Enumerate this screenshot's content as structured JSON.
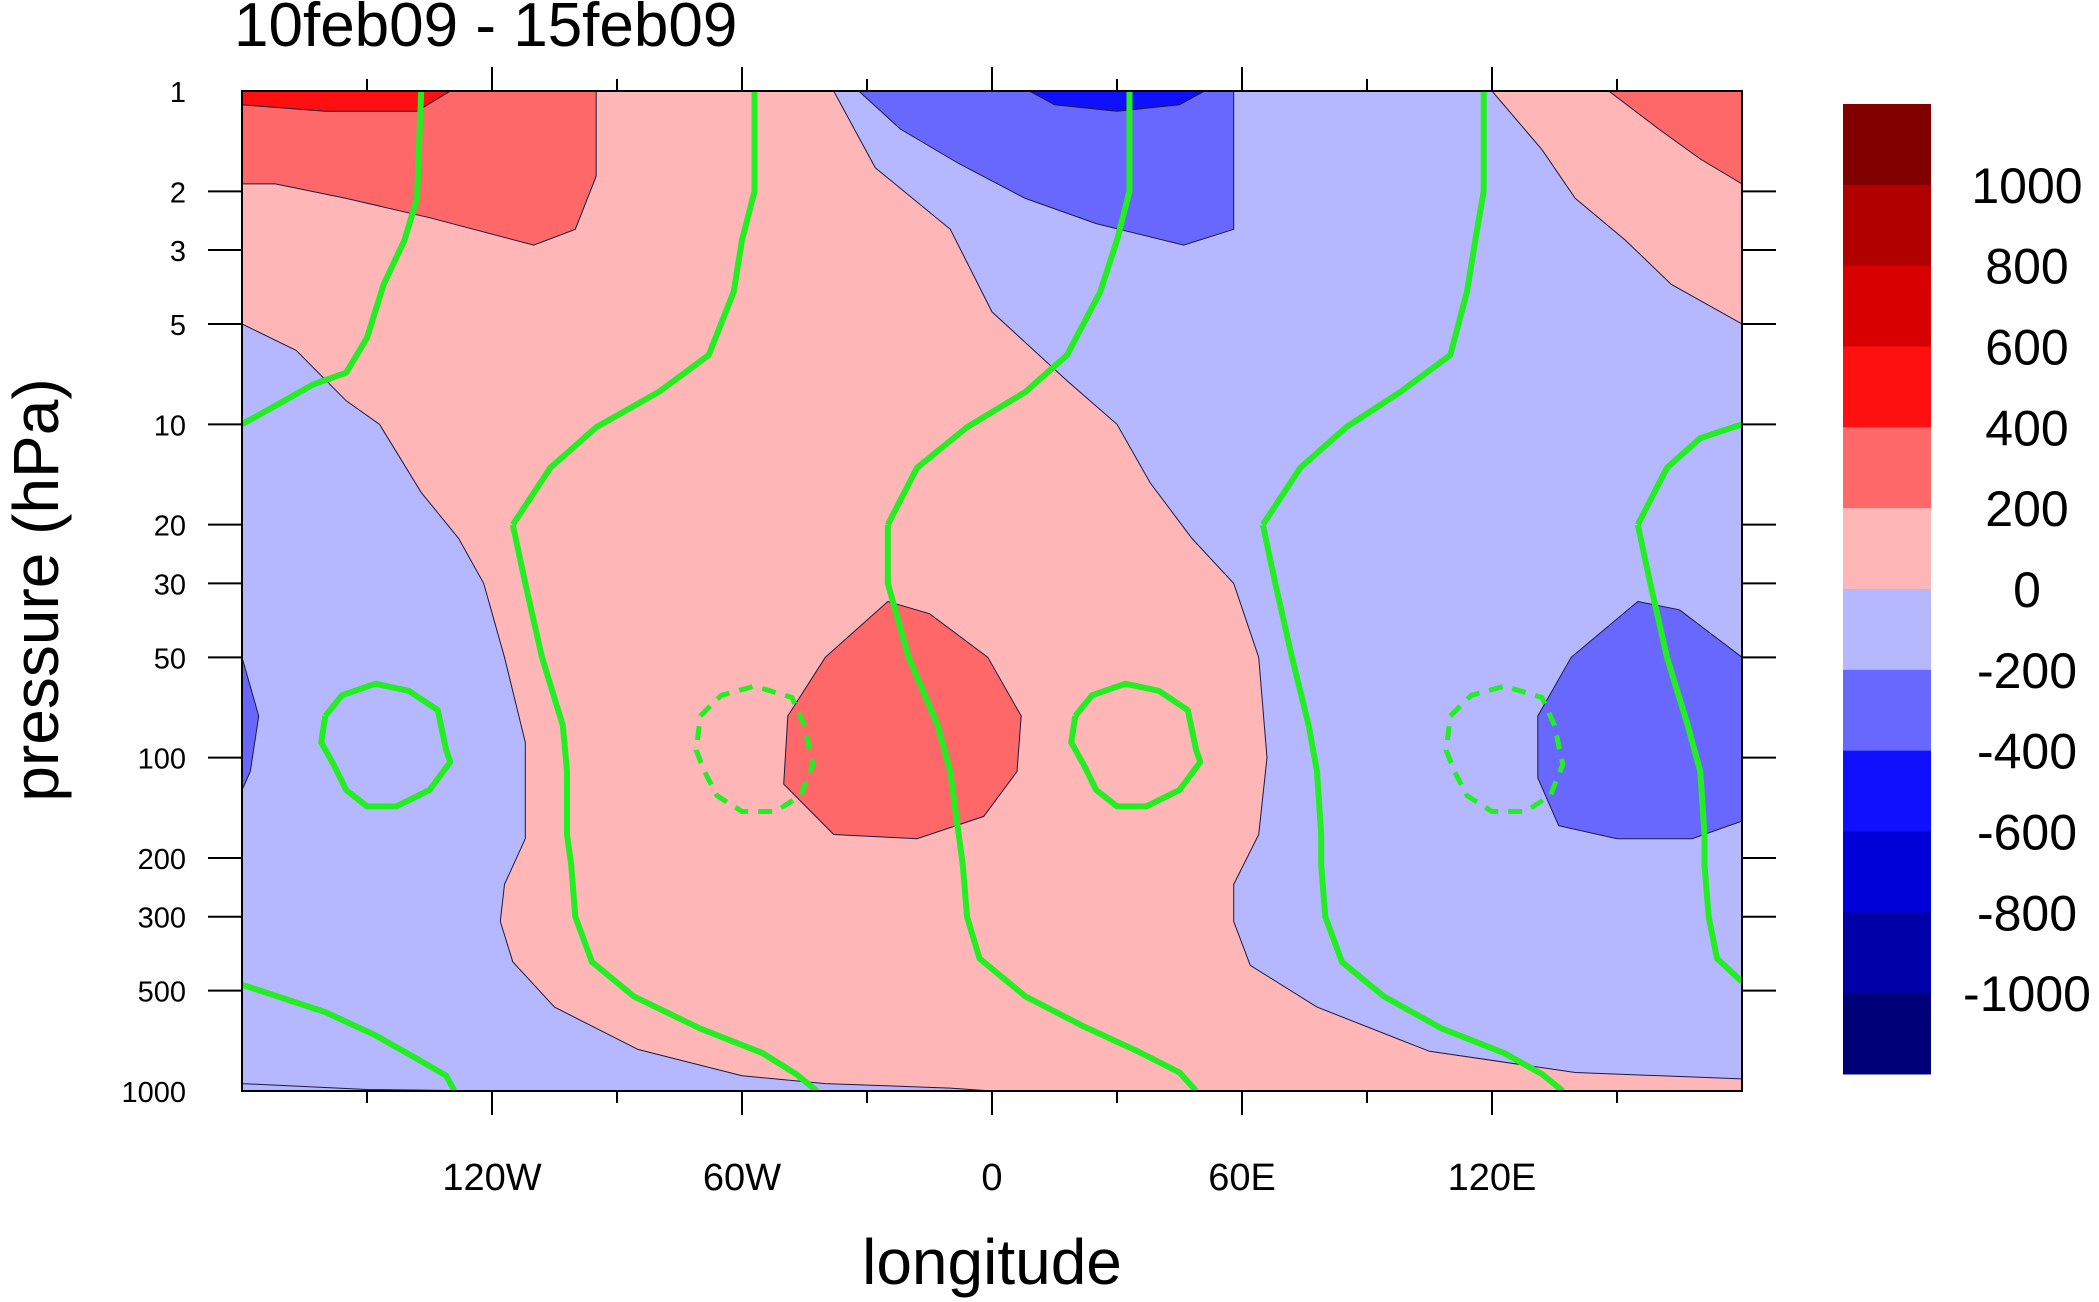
{
  "chart_data": {
    "type": "heatmap",
    "title": "10feb09 - 15feb09",
    "xlabel": "longitude",
    "ylabel": "pressure (hPa)",
    "x": {
      "range": [
        -180,
        180
      ],
      "tick_values": [
        -120,
        -60,
        0,
        60,
        120
      ],
      "tick_labels": [
        "120W",
        "60W",
        "0",
        "60E",
        "120E"
      ],
      "minor_every": 30
    },
    "y": {
      "scale": "log",
      "reversed": true,
      "range": [
        1000,
        1
      ],
      "tick_values": [
        1,
        2,
        3,
        5,
        10,
        20,
        30,
        50,
        100,
        200,
        300,
        500,
        1000
      ],
      "tick_labels": [
        "1",
        "2",
        "3",
        "5",
        "10",
        "20",
        "30",
        "50",
        "100",
        "200",
        "300",
        "500",
        "1000"
      ]
    },
    "colorbar": {
      "levels": [
        1000,
        800,
        600,
        400,
        200,
        0,
        -200,
        -400,
        -600,
        -800,
        -1000
      ],
      "labels": [
        "1000",
        "800",
        "600",
        "400",
        "200",
        "0",
        "-200",
        "-400",
        "-600",
        "-800",
        "-1000"
      ],
      "colors": [
        "#800000",
        "#b00000",
        "#d80000",
        "#ff1010",
        "#ff6868",
        "#ffb6b6",
        "#b6b8ff",
        "#6868ff",
        "#1010ff",
        "#0000d8",
        "#0000a8",
        "#000078"
      ]
    },
    "fill_regions": [
      {
        "value_band": "0 to 200",
        "color": "#ffb6b6",
        "points": [
          [
            -180,
            1
          ],
          [
            180,
            1
          ],
          [
            180,
            1000
          ],
          [
            -180,
            1000
          ]
        ]
      },
      {
        "value_band": "-200 to 0",
        "color": "#b6b8ff",
        "points": [
          [
            -180,
            5
          ],
          [
            -167,
            6
          ],
          [
            -155,
            8.5
          ],
          [
            -147,
            10
          ],
          [
            -137,
            16
          ],
          [
            -128,
            22
          ],
          [
            -122,
            30
          ],
          [
            -117,
            50
          ],
          [
            -112,
            90
          ],
          [
            -112,
            175
          ],
          [
            -117,
            240
          ],
          [
            -118,
            310
          ],
          [
            -115,
            410
          ],
          [
            -105,
            560
          ],
          [
            -85,
            750
          ],
          [
            -60,
            900
          ],
          [
            -40,
            950
          ],
          [
            -10,
            980
          ],
          [
            0,
            1000
          ],
          [
            -180,
            1000
          ],
          [
            -180,
            950
          ],
          [
            -150,
            990
          ],
          [
            -120,
            1000
          ],
          [
            -180,
            1000
          ]
        ]
      },
      {
        "value_band": "-200 to 0",
        "color": "#b6b8ff",
        "points": [
          [
            -38,
            1
          ],
          [
            -28,
            1.7
          ],
          [
            -10,
            2.6
          ],
          [
            0,
            4.6
          ],
          [
            18,
            7.4
          ],
          [
            30,
            10
          ],
          [
            38,
            15
          ],
          [
            48,
            22
          ],
          [
            58,
            30
          ],
          [
            64,
            50
          ],
          [
            66,
            100
          ],
          [
            64,
            170
          ],
          [
            58,
            240
          ],
          [
            58,
            310
          ],
          [
            62,
            420
          ],
          [
            78,
            560
          ],
          [
            105,
            760
          ],
          [
            140,
            880
          ],
          [
            180,
            920
          ],
          [
            180,
            5
          ],
          [
            163,
            3.8
          ],
          [
            152,
            2.8
          ],
          [
            140,
            2.1
          ],
          [
            132,
            1.5
          ],
          [
            120,
            1
          ]
        ]
      },
      {
        "value_band": "200 to 400",
        "color": "#ff6868",
        "points": [
          [
            -180,
            1
          ],
          [
            -95,
            1
          ],
          [
            -95,
            1.8
          ],
          [
            -100,
            2.6
          ],
          [
            -110,
            2.9
          ],
          [
            -135,
            2.4
          ],
          [
            -155,
            2.1
          ],
          [
            -172,
            1.9
          ],
          [
            -180,
            1.9
          ]
        ]
      },
      {
        "value_band": "200 to 400",
        "color": "#ff6868",
        "points": [
          [
            148,
            1
          ],
          [
            180,
            1
          ],
          [
            180,
            1.9
          ],
          [
            170,
            1.6
          ],
          [
            160,
            1.3
          ]
        ]
      },
      {
        "value_band": "200 to 400",
        "color": "#ff6868",
        "points": [
          [
            -25,
            34
          ],
          [
            -15,
            37
          ],
          [
            -1,
            50
          ],
          [
            7,
            75
          ],
          [
            6,
            110
          ],
          [
            -2,
            150
          ],
          [
            -18,
            175
          ],
          [
            -38,
            170
          ],
          [
            -50,
            120
          ],
          [
            -49,
            75
          ],
          [
            -40,
            50
          ]
        ]
      },
      {
        "value_band": "400 to 600",
        "color": "#ff1010",
        "points": [
          [
            -180,
            1
          ],
          [
            -130,
            1
          ],
          [
            -138,
            1.15
          ],
          [
            -160,
            1.15
          ],
          [
            -180,
            1.1
          ]
        ]
      },
      {
        "value_band": "-400 to -200",
        "color": "#6868ff",
        "points": [
          [
            -32,
            1
          ],
          [
            58,
            1
          ],
          [
            58,
            2.6
          ],
          [
            46,
            2.9
          ],
          [
            25,
            2.5
          ],
          [
            8,
            2.1
          ],
          [
            -8,
            1.65
          ],
          [
            -22,
            1.3
          ]
        ]
      },
      {
        "value_band": "-400 to -200",
        "color": "#6868ff",
        "points": [
          [
            -180,
            50
          ],
          [
            -176,
            75
          ],
          [
            -178,
            110
          ],
          [
            -180,
            125
          ]
        ]
      },
      {
        "value_band": "-400 to -200",
        "color": "#6868ff",
        "points": [
          [
            155,
            34
          ],
          [
            165,
            36
          ],
          [
            180,
            50
          ],
          [
            180,
            155
          ],
          [
            168,
            175
          ],
          [
            150,
            175
          ],
          [
            136,
            160
          ],
          [
            131,
            115
          ],
          [
            131,
            75
          ],
          [
            139,
            50
          ]
        ]
      },
      {
        "value_band": "-600 to -400",
        "color": "#1010ff",
        "points": [
          [
            9,
            1
          ],
          [
            51,
            1
          ],
          [
            45,
            1.1
          ],
          [
            30,
            1.15
          ],
          [
            15,
            1.1
          ]
        ]
      }
    ],
    "contours_solid": [
      [
        [
          -180,
          10
        ],
        [
          -172,
          8.8
        ],
        [
          -163,
          7.6
        ],
        [
          -155,
          7
        ],
        [
          -150,
          5.5
        ],
        [
          -146,
          3.8
        ],
        [
          -141,
          2.8
        ],
        [
          -138,
          2.1
        ],
        [
          -137,
          1
        ]
      ],
      [
        [
          -115,
          20
        ],
        [
          -112,
          30
        ],
        [
          -108,
          50
        ],
        [
          -103,
          80
        ],
        [
          -102,
          110
        ],
        [
          -102,
          170
        ],
        [
          -101,
          210
        ],
        [
          -100,
          300
        ],
        [
          -96,
          410
        ],
        [
          -86,
          520
        ],
        [
          -70,
          650
        ],
        [
          -55,
          770
        ],
        [
          -47,
          890
        ],
        [
          -42,
          1000
        ]
      ],
      [
        [
          -115,
          20
        ],
        [
          -106,
          13.5
        ],
        [
          -95,
          10.2
        ],
        [
          -80,
          8
        ],
        [
          -68,
          6.2
        ],
        [
          -62,
          4
        ],
        [
          -60,
          2.8
        ],
        [
          -57,
          2
        ],
        [
          -57,
          1
        ]
      ],
      [
        [
          -25,
          20
        ],
        [
          -25,
          30
        ],
        [
          -20,
          50
        ],
        [
          -13,
          80
        ],
        [
          -10,
          110
        ],
        [
          -8,
          170
        ],
        [
          -7,
          210
        ],
        [
          -6,
          300
        ],
        [
          -3,
          400
        ],
        [
          8,
          520
        ],
        [
          22,
          640
        ],
        [
          35,
          760
        ],
        [
          45,
          880
        ],
        [
          49,
          1000
        ]
      ],
      [
        [
          -25,
          20
        ],
        [
          -18,
          13.5
        ],
        [
          -6,
          10.2
        ],
        [
          8,
          8
        ],
        [
          18,
          6.2
        ],
        [
          26,
          4
        ],
        [
          30,
          2.8
        ],
        [
          33,
          2
        ],
        [
          33,
          1
        ]
      ],
      [
        [
          65,
          20
        ],
        [
          68,
          30
        ],
        [
          72,
          50
        ],
        [
          76,
          80
        ],
        [
          78,
          110
        ],
        [
          79,
          170
        ],
        [
          79,
          210
        ],
        [
          80,
          300
        ],
        [
          84,
          410
        ],
        [
          94,
          520
        ],
        [
          108,
          650
        ],
        [
          123,
          770
        ],
        [
          132,
          890
        ],
        [
          137,
          1000
        ]
      ],
      [
        [
          65,
          20
        ],
        [
          74,
          13.5
        ],
        [
          85,
          10.2
        ],
        [
          98,
          8
        ],
        [
          110,
          6.2
        ],
        [
          114,
          4
        ],
        [
          116,
          2.8
        ],
        [
          118,
          2
        ],
        [
          118,
          1
        ]
      ],
      [
        [
          155,
          20
        ],
        [
          158,
          30
        ],
        [
          162,
          50
        ],
        [
          167,
          80
        ],
        [
          170,
          110
        ],
        [
          171,
          170
        ],
        [
          171,
          210
        ],
        [
          172,
          300
        ],
        [
          174,
          400
        ],
        [
          180,
          470
        ]
      ],
      [
        [
          155,
          20
        ],
        [
          162,
          13.5
        ],
        [
          170,
          11
        ],
        [
          180,
          10
        ]
      ],
      [
        [
          -180,
          480
        ],
        [
          -160,
          580
        ],
        [
          -148,
          680
        ],
        [
          -138,
          800
        ],
        [
          -131,
          900
        ],
        [
          -129,
          1000
        ]
      ],
      [
        [
          -160,
          75
        ],
        [
          -156,
          65
        ],
        [
          -148,
          60
        ],
        [
          -140,
          63
        ],
        [
          -133,
          72
        ],
        [
          -131,
          95
        ],
        [
          -130,
          103
        ],
        [
          -135,
          125
        ],
        [
          -143,
          140
        ],
        [
          -150,
          140
        ],
        [
          -155,
          125
        ],
        [
          -158,
          105
        ],
        [
          -161,
          90
        ],
        [
          -160,
          75
        ]
      ],
      [
        [
          20,
          75
        ],
        [
          24,
          65
        ],
        [
          32,
          60
        ],
        [
          40,
          63
        ],
        [
          47,
          72
        ],
        [
          49,
          95
        ],
        [
          50,
          103
        ],
        [
          45,
          125
        ],
        [
          37,
          140
        ],
        [
          30,
          140
        ],
        [
          25,
          125
        ],
        [
          22,
          105
        ],
        [
          19,
          90
        ],
        [
          20,
          75
        ]
      ]
    ],
    "contours_dashed": [
      [
        [
          -70,
          75
        ],
        [
          -65,
          65
        ],
        [
          -57,
          61
        ],
        [
          -48,
          66
        ],
        [
          -45,
          80
        ],
        [
          -43,
          105
        ],
        [
          -46,
          130
        ],
        [
          -52,
          145
        ],
        [
          -60,
          145
        ],
        [
          -66,
          130
        ],
        [
          -69,
          110
        ],
        [
          -71,
          95
        ],
        [
          -70,
          75
        ]
      ],
      [
        [
          110,
          75
        ],
        [
          115,
          65
        ],
        [
          123,
          61
        ],
        [
          132,
          66
        ],
        [
          135,
          80
        ],
        [
          137,
          105
        ],
        [
          134,
          130
        ],
        [
          128,
          145
        ],
        [
          120,
          145
        ],
        [
          114,
          130
        ],
        [
          111,
          110
        ],
        [
          109,
          95
        ],
        [
          110,
          75
        ]
      ]
    ]
  }
}
